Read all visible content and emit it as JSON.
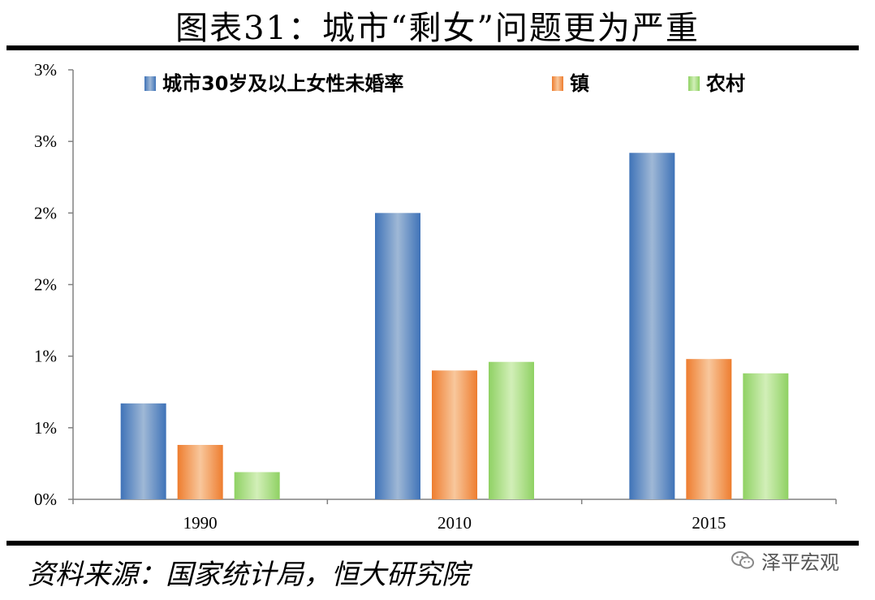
{
  "title": "图表31：城市“剩女”问题更为严重",
  "source": "资料来源：国家统计局，恒大研究院",
  "watermark": "泽平宏观",
  "colors": {
    "blue": "#3f73b8",
    "blue_light": "#9fb8d6",
    "orange": "#ee7d2f",
    "orange_light": "#f8c79c",
    "green": "#8fd163",
    "green_light": "#d2efb8"
  },
  "chart_data": {
    "type": "bar",
    "categories": [
      "1990",
      "2010",
      "2015"
    ],
    "series": [
      {
        "name": "城市30岁及以上女性未婚率",
        "values": [
          0.67,
          2.0,
          2.42
        ],
        "color": "blue"
      },
      {
        "name": "镇",
        "values": [
          0.38,
          0.9,
          0.98
        ],
        "color": "orange"
      },
      {
        "name": "农村",
        "values": [
          0.19,
          0.96,
          0.88
        ],
        "color": "green"
      }
    ],
    "y_ticks": [
      "0%",
      "1%",
      "1%",
      "2%",
      "2%",
      "3%",
      "3%"
    ],
    "ylim": [
      0,
      3.0
    ],
    "grid": false,
    "legend_position": "top"
  }
}
